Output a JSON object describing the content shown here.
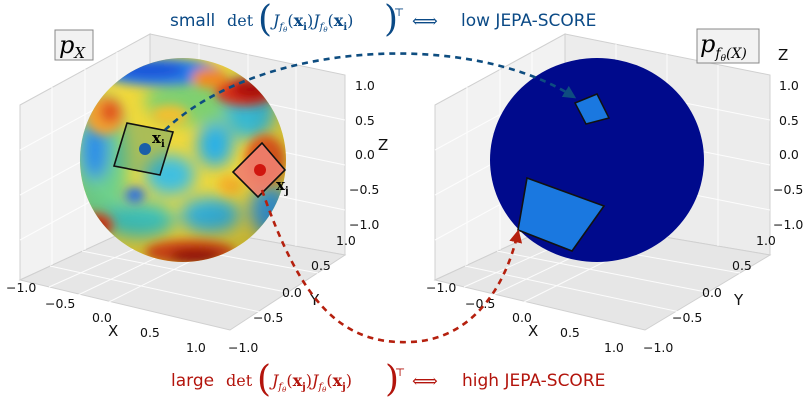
{
  "captions": {
    "top": {
      "prefix": "small",
      "det": "det",
      "J": "J",
      "f": "f",
      "theta": "θ",
      "x_bold": "x",
      "sub_i": "i",
      "transpose": "⊤",
      "iff": "⟺",
      "suffix": "low JEPA-SCORE"
    },
    "bottom": {
      "prefix": "large",
      "det": "det",
      "J": "J",
      "f": "f",
      "theta": "θ",
      "x_bold": "x",
      "sub_j": "j",
      "transpose": "⊤",
      "iff": "⟺",
      "suffix": "high JEPA-SCORE"
    }
  },
  "left_panel": {
    "label_p": "p",
    "label_sub": "X",
    "point_i_label": "x",
    "point_i_sub": "i",
    "point_j_label": "x",
    "point_j_sub": "j",
    "axis_x_label": "X",
    "axis_y_label": "Y",
    "axis_z_label": "Z",
    "x_ticks": [
      "−1.0",
      "−0.5",
      "0.0",
      "0.5",
      "1.0"
    ],
    "y_ticks": [
      "−1.0",
      "−0.5",
      "0.0",
      "0.5",
      "1.0"
    ],
    "z_ticks": [
      "1.0",
      "0.5",
      "0.0",
      "−0.5",
      "−1.0"
    ]
  },
  "right_panel": {
    "label_p": "p",
    "label_sub_f": "f",
    "label_sub_theta": "θ",
    "label_sub_arg": "(X)",
    "axis_x_label": "X",
    "axis_y_label": "Y",
    "axis_z_label": "Z",
    "x_ticks": [
      "−1.0",
      "−0.5",
      "0.0",
      "0.5",
      "1.0"
    ],
    "y_ticks": [
      "−1.0",
      "−0.5",
      "0.0",
      "0.5",
      "1.0"
    ],
    "z_ticks": [
      "1.0",
      "0.5",
      "0.0",
      "−0.5",
      "−1.0"
    ]
  },
  "colors": {
    "top_caption": "#0b4a86",
    "bottom_caption": "#b3140c",
    "arrow_blue": "#0e4d80",
    "arrow_red": "#b5200e",
    "sphere_dark": "#000a8c",
    "patch_blue": "#1a78e0"
  }
}
